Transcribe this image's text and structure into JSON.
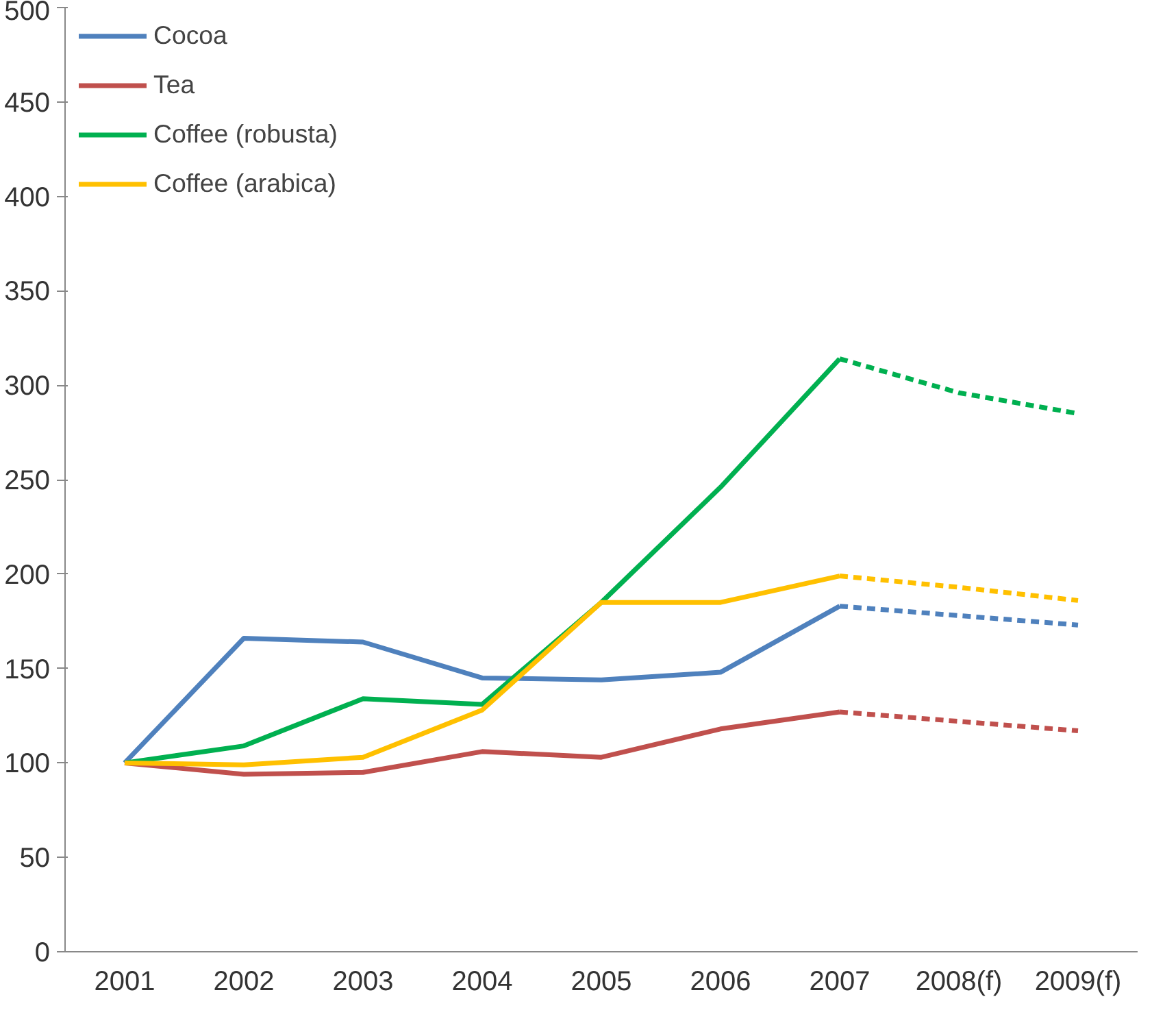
{
  "chart_data": {
    "type": "line",
    "categories": [
      "2001",
      "2002",
      "2003",
      "2004",
      "2005",
      "2006",
      "2007",
      "2008(f)",
      "2009(f)"
    ],
    "ylim": [
      0,
      500
    ],
    "yticks": [
      0,
      50,
      100,
      150,
      200,
      250,
      300,
      350,
      400,
      450,
      500
    ],
    "grid": false,
    "legend": "top left",
    "marker": "none",
    "line_style": "solid",
    "series": [
      {
        "name": "Cocoa",
        "color": "#4f81bd",
        "values": [
          100,
          166,
          164,
          145,
          144,
          148,
          183,
          null,
          null
        ]
      },
      {
        "name": "Tea",
        "color": "#c0504d",
        "values": [
          100,
          94,
          95,
          106,
          103,
          118,
          127,
          null,
          null
        ]
      },
      {
        "name": "Coffee (robusta)",
        "color": "#00b050",
        "values": [
          100,
          109,
          134,
          131,
          185,
          246,
          314,
          null,
          null
        ]
      },
      {
        "name": "Coffee (arabica)",
        "color": "#ffc000",
        "values": [
          100,
          99,
          103,
          128,
          185,
          185,
          199,
          null,
          null
        ]
      },
      {
        "color": "#4f81bd",
        "line_style": "dashed",
        "values": [
          null,
          null,
          null,
          null,
          null,
          null,
          183,
          178,
          173
        ]
      },
      {
        "color": "#c0504d",
        "line_style": "dashed",
        "values": [
          null,
          null,
          null,
          null,
          null,
          null,
          127,
          122,
          117
        ]
      },
      {
        "color": "#00b050",
        "line_style": "dashed",
        "values": [
          null,
          null,
          null,
          null,
          null,
          null,
          314,
          296,
          285
        ]
      },
      {
        "color": "#ffc000",
        "line_style": "dashed",
        "values": [
          null,
          null,
          null,
          null,
          null,
          null,
          199,
          193,
          186
        ]
      }
    ]
  }
}
